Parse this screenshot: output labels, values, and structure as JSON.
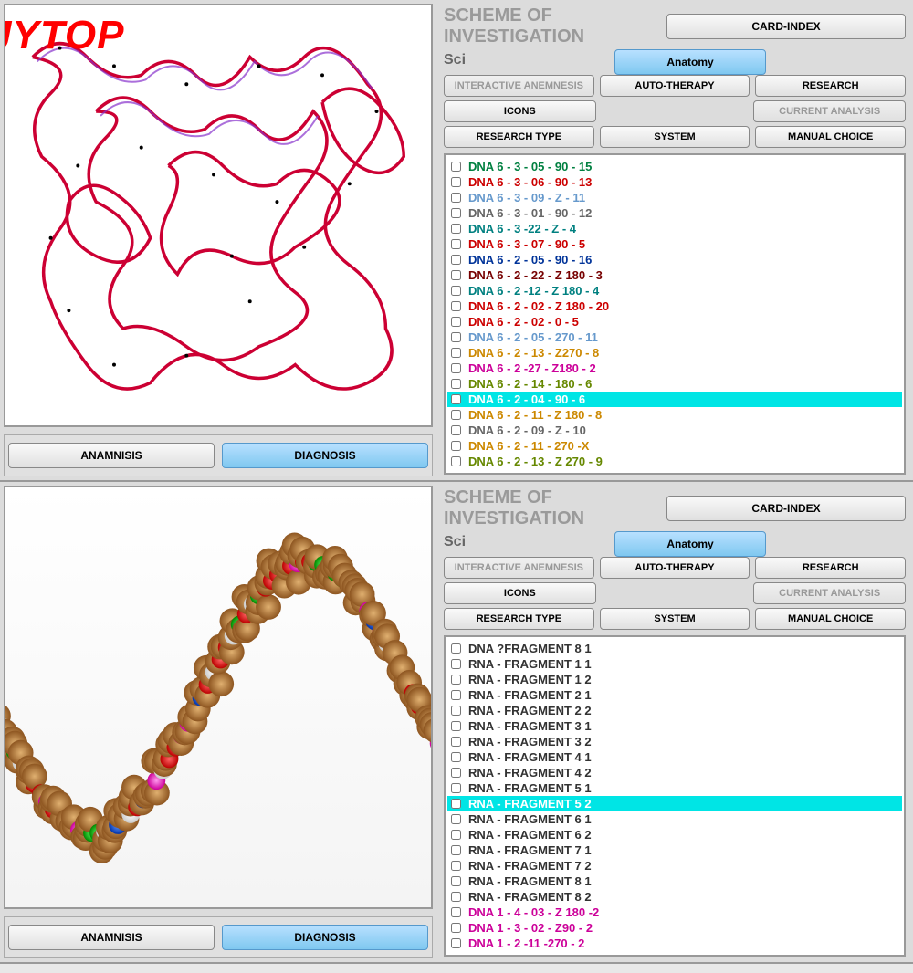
{
  "watermark": "JYTOP",
  "scheme_title": "SCHEME OF INVESTIGATION",
  "sci": "Sci",
  "buttons": {
    "card_index": "CARD-INDEX",
    "anatomy": "Anatomy",
    "interactive_anemnesis": "INTERACTIVE ANEMNESIS",
    "auto_therapy": "AUTO-THERAPY",
    "research": "RESEARCH",
    "icons": "ICONS",
    "current_analysis": "CURRENT ANALYSIS",
    "research_type": "RESEARCH TYPE",
    "system": "SYSTEM",
    "manual_choice": "MANUAL CHOICE",
    "anamnisis": "ANAMNISIS",
    "diagnosis": "DIAGNOSIS"
  },
  "top_list": [
    {
      "label": "DNA 6 - 3 - 05 - 90 - 15",
      "color": "#008040"
    },
    {
      "label": "DNA 6 - 3 - 06 - 90 - 13",
      "color": "#cc0000"
    },
    {
      "label": "DNA 6 - 3 - 09 - Z - 11",
      "color": "#6699cc"
    },
    {
      "label": "DNA 6 - 3 - 01 - 90 - 12",
      "color": "#666666"
    },
    {
      "label": "DNA 6 - 3 -22 - Z - 4",
      "color": "#008080"
    },
    {
      "label": "DNA 6 - 3 - 07 - 90 - 5",
      "color": "#cc0000"
    },
    {
      "label": "DNA 6 - 2 - 05 - 90 - 16",
      "color": "#003399"
    },
    {
      "label": "DNA 6 - 2 - 22 - Z 180 - 3",
      "color": "#770000"
    },
    {
      "label": "DNA 6 - 2 -12 - Z 180 - 4",
      "color": "#008080"
    },
    {
      "label": "DNA 6 - 2 - 02 - Z 180 - 20",
      "color": "#cc0000"
    },
    {
      "label": "DNA 6 - 2 - 02 - 0 - 5",
      "color": "#cc0000"
    },
    {
      "label": "DNA 6 - 2 - 05 - 270 - 11",
      "color": "#6699cc"
    },
    {
      "label": "DNA 6 - 2 - 13 - Z270 - 8",
      "color": "#cc8800"
    },
    {
      "label": "DNA 6 - 2 -27 - Z180 - 2",
      "color": "#cc0099"
    },
    {
      "label": "DNA 6 - 2 - 14 - 180 - 6",
      "color": "#668800"
    },
    {
      "label": "DNA 6 - 2 - 04 - 90 - 6",
      "color": "#ffffff",
      "selected": true
    },
    {
      "label": "DNA 6 - 2 - 11 - Z 180 - 8",
      "color": "#cc8800"
    },
    {
      "label": "DNA 6 - 2 - 09 - Z - 10",
      "color": "#666666"
    },
    {
      "label": "DNA 6 - 2 - 11 - 270 -X",
      "color": "#cc8800"
    },
    {
      "label": "DNA 6 - 2 - 13 - Z 270 - 9",
      "color": "#668800"
    }
  ],
  "bottom_list": [
    {
      "label": "DNA ?FRAGMENT 8 1",
      "color": "#333"
    },
    {
      "label": "RNA - FRAGMENT 1 1",
      "color": "#333"
    },
    {
      "label": "RNA - FRAGMENT 1 2",
      "color": "#333"
    },
    {
      "label": "RNA - FRAGMENT 2 1",
      "color": "#333"
    },
    {
      "label": "RNA - FRAGMENT 2 2",
      "color": "#333"
    },
    {
      "label": "RNA - FRAGMENT 3 1",
      "color": "#333"
    },
    {
      "label": "RNA - FRAGMENT 3 2",
      "color": "#333"
    },
    {
      "label": "RNA - FRAGMENT 4 1",
      "color": "#333"
    },
    {
      "label": "RNA - FRAGMENT 4 2",
      "color": "#333"
    },
    {
      "label": "RNA - FRAGMENT 5 1",
      "color": "#333"
    },
    {
      "label": "RNA - FRAGMENT 5 2",
      "color": "#ffffff",
      "selected": true
    },
    {
      "label": "RNA - FRAGMENT 6 1",
      "color": "#333"
    },
    {
      "label": "RNA - FRAGMENT 6 2",
      "color": "#333"
    },
    {
      "label": "RNA - FRAGMENT 7 1",
      "color": "#333"
    },
    {
      "label": "RNA - FRAGMENT 7 2",
      "color": "#333"
    },
    {
      "label": "RNA - FRAGMENT 8 1",
      "color": "#333"
    },
    {
      "label": "RNA - FRAGMENT 8 2",
      "color": "#333"
    },
    {
      "label": "DNA 1 - 4 - 03 - Z 180 -2",
      "color": "#cc0099"
    },
    {
      "label": "DNA 1 - 3 - 02 - Z90 - 2",
      "color": "#cc0099"
    },
    {
      "label": "DNA 1 - 2 -11 -270 - 2",
      "color": "#cc0099"
    }
  ],
  "viz_colors": {
    "dna_strand": "#cc0033",
    "dna_strand2": "#8833cc",
    "molecule_brown": "#bb7733",
    "molecule_pink": "#ff33cc",
    "molecule_green": "#00aa00",
    "molecule_blue": "#0044dd",
    "molecule_red": "#ee0000",
    "molecule_white": "#eeeeee"
  }
}
